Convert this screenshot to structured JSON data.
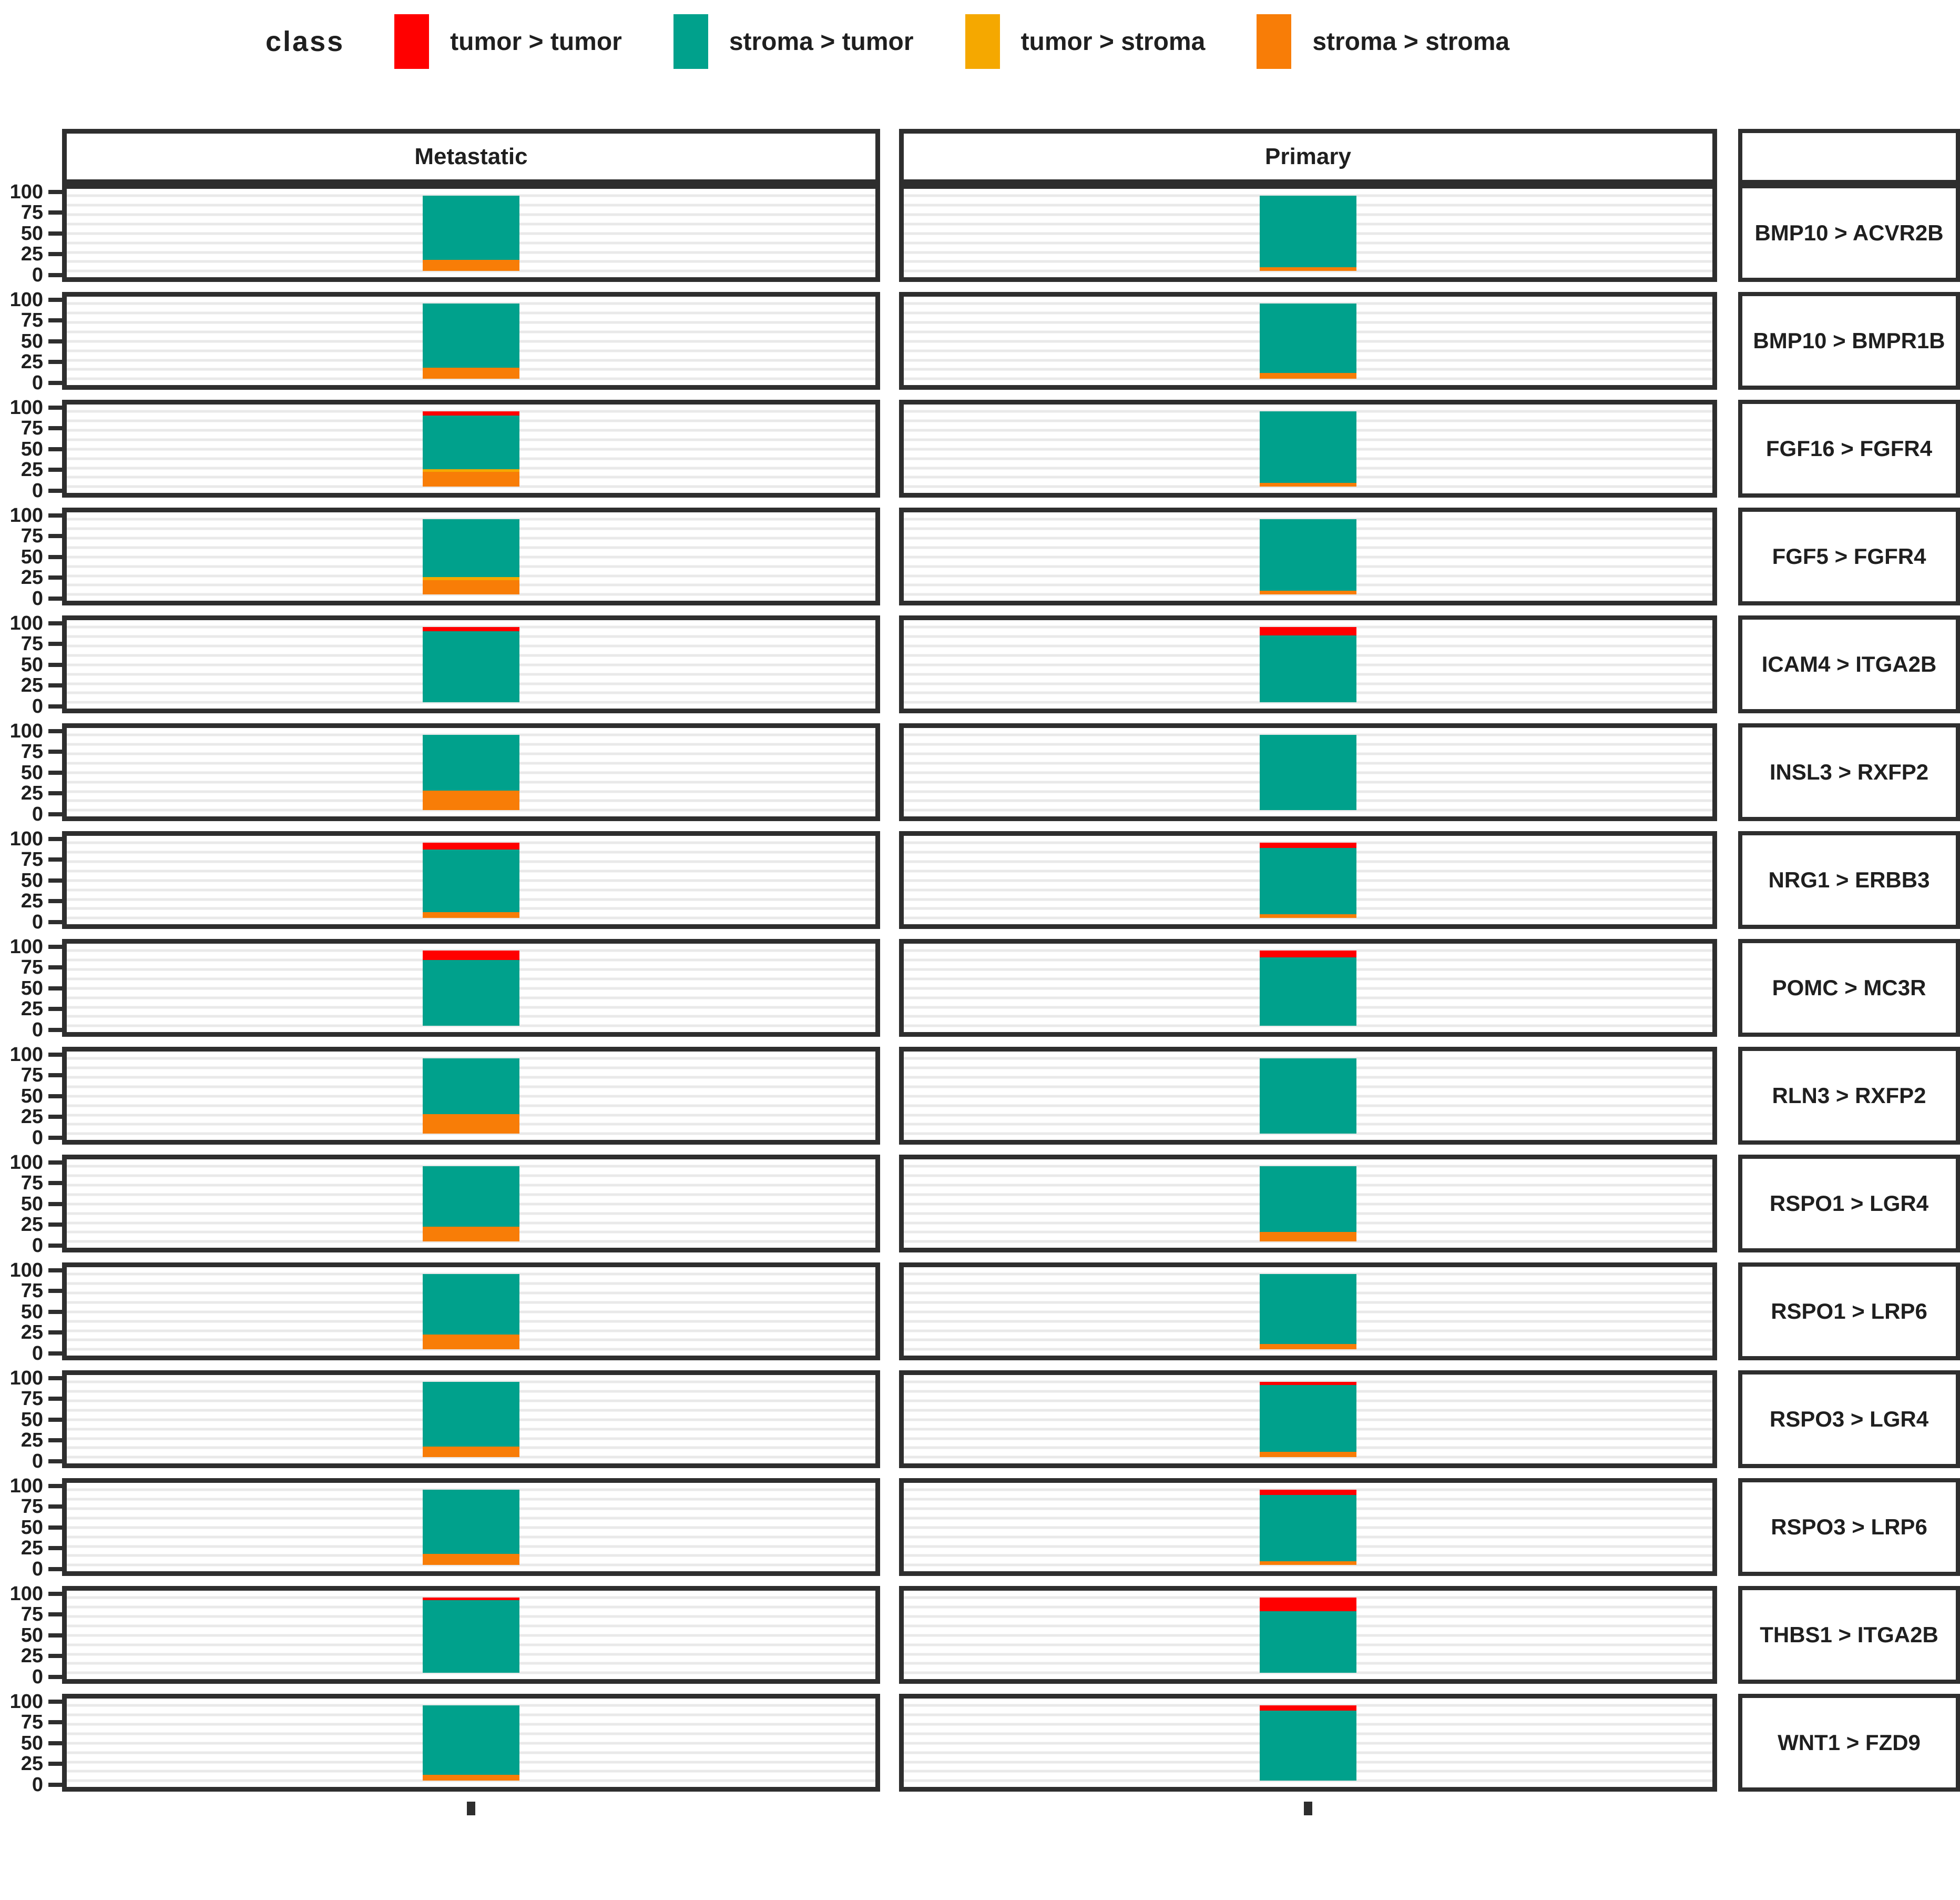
{
  "legend": {
    "title": "class",
    "items": [
      {
        "key": "tumor_tumor",
        "label": "tumor > tumor",
        "color": "#FF0000"
      },
      {
        "key": "stroma_tumor",
        "label": "stroma > tumor",
        "color": "#00A18C"
      },
      {
        "key": "tumor_stroma",
        "label": "tumor > stroma",
        "color": "#F5A800"
      },
      {
        "key": "stroma_stroma",
        "label": "stroma > stroma",
        "color": "#F87D07"
      }
    ]
  },
  "columns": [
    "Metastatic",
    "Primary"
  ],
  "y_axis": {
    "ticks": [
      "100",
      "75",
      "50",
      "25",
      "0"
    ]
  },
  "style": {
    "border_color": "#2e2e2e",
    "gridline_color": "#e9e9e9",
    "background": "#ffffff"
  },
  "chart_data": {
    "type": "bar",
    "stacked": true,
    "orientation": "vertical",
    "ylim": [
      0,
      100
    ],
    "grid": "horizontal-light",
    "legend_position": "top",
    "facet_columns": [
      "Metastatic",
      "Primary"
    ],
    "stack_order_top_to_bottom": [
      "tumor > tumor",
      "stroma > tumor",
      "tumor > stroma",
      "stroma > stroma"
    ],
    "units": "percent",
    "rows": [
      {
        "label": "BMP10 > ACVR2B",
        "metastatic": {
          "tumor_tumor": 0,
          "stroma_tumor": 85,
          "tumor_stroma": 0,
          "stroma_stroma": 15
        },
        "primary": {
          "tumor_tumor": 0,
          "stroma_tumor": 95,
          "tumor_stroma": 0,
          "stroma_stroma": 5
        }
      },
      {
        "label": "BMP10 > BMPR1B",
        "metastatic": {
          "tumor_tumor": 0,
          "stroma_tumor": 85,
          "tumor_stroma": 0,
          "stroma_stroma": 15
        },
        "primary": {
          "tumor_tumor": 0,
          "stroma_tumor": 92,
          "tumor_stroma": 0,
          "stroma_stroma": 8
        }
      },
      {
        "label": "FGF16 > FGFR4",
        "metastatic": {
          "tumor_tumor": 5,
          "stroma_tumor": 72,
          "tumor_stroma": 3,
          "stroma_stroma": 20
        },
        "primary": {
          "tumor_tumor": 0,
          "stroma_tumor": 95,
          "tumor_stroma": 0,
          "stroma_stroma": 5
        }
      },
      {
        "label": "FGF5 > FGFR4",
        "metastatic": {
          "tumor_tumor": 0,
          "stroma_tumor": 77,
          "tumor_stroma": 4,
          "stroma_stroma": 19
        },
        "primary": {
          "tumor_tumor": 0,
          "stroma_tumor": 95,
          "tumor_stroma": 0,
          "stroma_stroma": 5
        }
      },
      {
        "label": "ICAM4 > ITGA2B",
        "metastatic": {
          "tumor_tumor": 5,
          "stroma_tumor": 95,
          "tumor_stroma": 0,
          "stroma_stroma": 0
        },
        "primary": {
          "tumor_tumor": 11,
          "stroma_tumor": 89,
          "tumor_stroma": 0,
          "stroma_stroma": 0
        }
      },
      {
        "label": "INSL3 > RXFP2",
        "metastatic": {
          "tumor_tumor": 0,
          "stroma_tumor": 74,
          "tumor_stroma": 0,
          "stroma_stroma": 26
        },
        "primary": {
          "tumor_tumor": 0,
          "stroma_tumor": 100,
          "tumor_stroma": 0,
          "stroma_stroma": 0
        }
      },
      {
        "label": "NRG1 > ERBB3",
        "metastatic": {
          "tumor_tumor": 9,
          "stroma_tumor": 83,
          "tumor_stroma": 0,
          "stroma_stroma": 8
        },
        "primary": {
          "tumor_tumor": 7,
          "stroma_tumor": 88,
          "tumor_stroma": 0,
          "stroma_stroma": 5
        }
      },
      {
        "label": "POMC > MC3R",
        "metastatic": {
          "tumor_tumor": 12,
          "stroma_tumor": 88,
          "tumor_stroma": 0,
          "stroma_stroma": 0
        },
        "primary": {
          "tumor_tumor": 9,
          "stroma_tumor": 91,
          "tumor_stroma": 0,
          "stroma_stroma": 0
        }
      },
      {
        "label": "RLN3 > RXFP2",
        "metastatic": {
          "tumor_tumor": 0,
          "stroma_tumor": 74,
          "tumor_stroma": 0,
          "stroma_stroma": 26
        },
        "primary": {
          "tumor_tumor": 0,
          "stroma_tumor": 100,
          "tumor_stroma": 0,
          "stroma_stroma": 0
        }
      },
      {
        "label": "RSPO1 > LGR4",
        "metastatic": {
          "tumor_tumor": 0,
          "stroma_tumor": 80,
          "tumor_stroma": 0,
          "stroma_stroma": 20
        },
        "primary": {
          "tumor_tumor": 0,
          "stroma_tumor": 87,
          "tumor_stroma": 0,
          "stroma_stroma": 13
        }
      },
      {
        "label": "RSPO1 > LRP6",
        "metastatic": {
          "tumor_tumor": 0,
          "stroma_tumor": 80,
          "tumor_stroma": 0,
          "stroma_stroma": 20
        },
        "primary": {
          "tumor_tumor": 0,
          "stroma_tumor": 93,
          "tumor_stroma": 0,
          "stroma_stroma": 7
        }
      },
      {
        "label": "RSPO3 > LGR4",
        "metastatic": {
          "tumor_tumor": 0,
          "stroma_tumor": 86,
          "tumor_stroma": 0,
          "stroma_stroma": 14
        },
        "primary": {
          "tumor_tumor": 4,
          "stroma_tumor": 89,
          "tumor_stroma": 0,
          "stroma_stroma": 7
        }
      },
      {
        "label": "RSPO3 > LRP6",
        "metastatic": {
          "tumor_tumor": 0,
          "stroma_tumor": 85,
          "tumor_stroma": 0,
          "stroma_stroma": 15
        },
        "primary": {
          "tumor_tumor": 7,
          "stroma_tumor": 88,
          "tumor_stroma": 0,
          "stroma_stroma": 5
        }
      },
      {
        "label": "THBS1 > ITGA2B",
        "metastatic": {
          "tumor_tumor": 3,
          "stroma_tumor": 97,
          "tumor_stroma": 0,
          "stroma_stroma": 0
        },
        "primary": {
          "tumor_tumor": 18,
          "stroma_tumor": 82,
          "tumor_stroma": 0,
          "stroma_stroma": 0
        }
      },
      {
        "label": "WNT1 > FZD9",
        "metastatic": {
          "tumor_tumor": 0,
          "stroma_tumor": 92,
          "tumor_stroma": 0,
          "stroma_stroma": 8
        },
        "primary": {
          "tumor_tumor": 7,
          "stroma_tumor": 93,
          "tumor_stroma": 0,
          "stroma_stroma": 0
        }
      }
    ]
  }
}
